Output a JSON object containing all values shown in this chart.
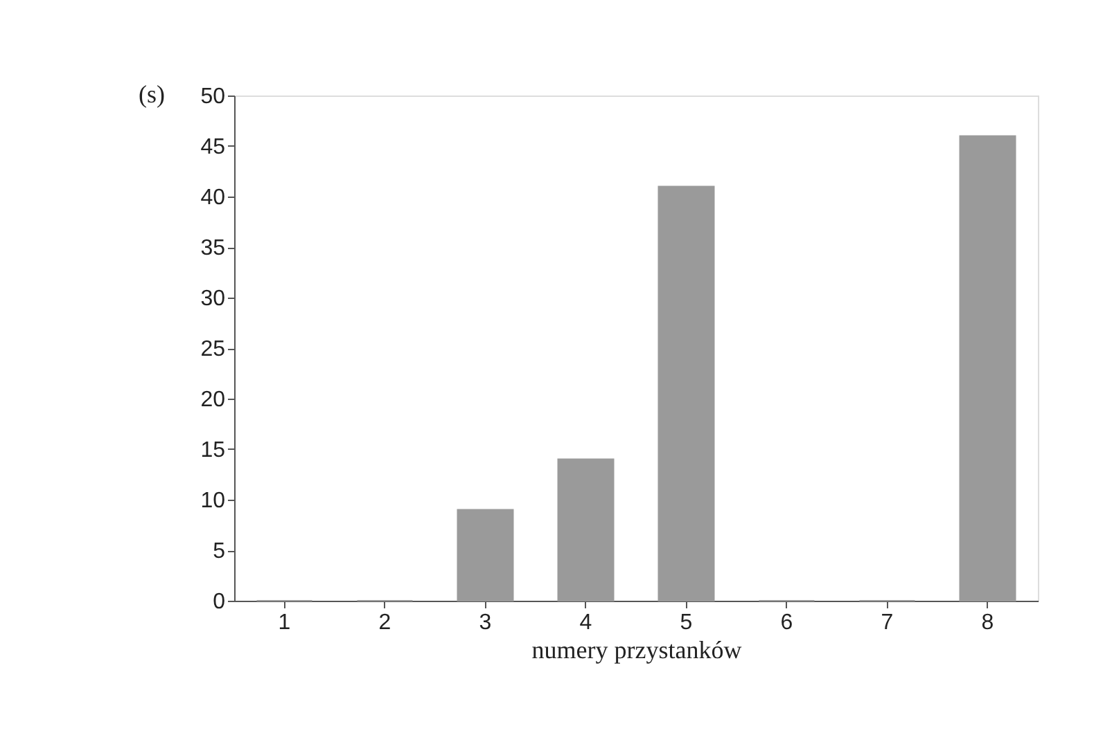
{
  "chart_data": {
    "type": "bar",
    "ylabel": "(s)",
    "xlabel": "numery przystanków",
    "categories": [
      "1",
      "2",
      "3",
      "4",
      "5",
      "6",
      "7",
      "8"
    ],
    "values": [
      0,
      0,
      9,
      14,
      41,
      0,
      0,
      46
    ],
    "color": "#9a9a9a",
    "ylim": [
      0,
      50
    ],
    "yticks": [
      0,
      5,
      10,
      15,
      20,
      25,
      30,
      35,
      40,
      45,
      50
    ],
    "grid": false
  }
}
